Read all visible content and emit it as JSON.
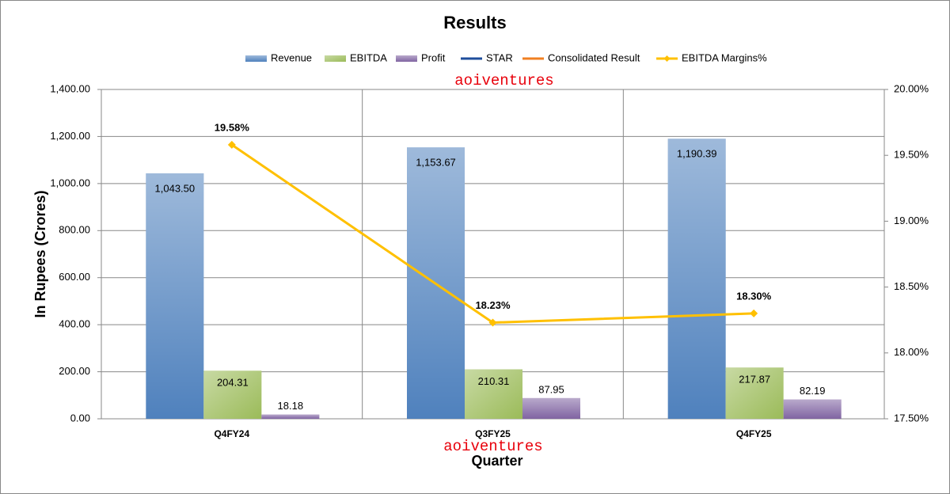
{
  "chart_data": {
    "type": "bar",
    "title": "Results",
    "x_label": "Quarter",
    "y_label": "In Rupees (Crores)",
    "annotations": [
      "aoiventures",
      "aoiventures"
    ],
    "categories": [
      "Q4FY24",
      "Q3FY25",
      "Q4FY25"
    ],
    "series": [
      {
        "name": "Revenue",
        "type": "bar",
        "color": "#4f81bd",
        "values": [
          1043.5,
          1153.67,
          1190.39
        ],
        "value_labels": [
          "1,043.50",
          "1,153.67",
          "1,190.39"
        ]
      },
      {
        "name": "EBITDA",
        "type": "bar",
        "color": "#9bbb59",
        "values": [
          204.31,
          210.31,
          217.87
        ]
      },
      {
        "name": "Profit",
        "type": "bar",
        "color": "#8064a2",
        "values": [
          18.18,
          87.95,
          82.19
        ]
      },
      {
        "name": "STAR",
        "type": "line",
        "color": "#1f4e9c",
        "values": [
          null,
          null,
          null
        ]
      },
      {
        "name": "Consolidated Result",
        "type": "line",
        "color": "#f07f22",
        "values": [
          null,
          null,
          null
        ]
      },
      {
        "name": "EBITDA Margins%",
        "type": "line",
        "axis": "y2",
        "marker": "diamond",
        "color": "#ffc000",
        "values": [
          19.58,
          18.23,
          18.3
        ],
        "value_labels": [
          "19.58%",
          "18.23%",
          "18.30%"
        ]
      }
    ],
    "ylim": [
      0,
      1400
    ],
    "yticks": [
      {
        "value": 0,
        "label": "0.00"
      },
      {
        "value": 200,
        "label": "200.00"
      },
      {
        "value": 400,
        "label": "400.00"
      },
      {
        "value": 600,
        "label": "600.00"
      },
      {
        "value": 800,
        "label": "800.00"
      },
      {
        "value": 1000,
        "label": "1,000.00"
      },
      {
        "value": 1200,
        "label": "1,200.00"
      },
      {
        "value": 1400,
        "label": "1,400.00"
      }
    ],
    "y2lim": [
      17.5,
      20
    ],
    "y2ticks": [
      {
        "value": 17.5,
        "label": "17.50%"
      },
      {
        "value": 18,
        "label": "18.00%"
      },
      {
        "value": 18.5,
        "label": "18.50%"
      },
      {
        "value": 19,
        "label": "19.00%"
      },
      {
        "value": 19.5,
        "label": "19.50%"
      },
      {
        "value": 20,
        "label": "20.00%"
      }
    ],
    "grid": true,
    "legend": "top"
  }
}
